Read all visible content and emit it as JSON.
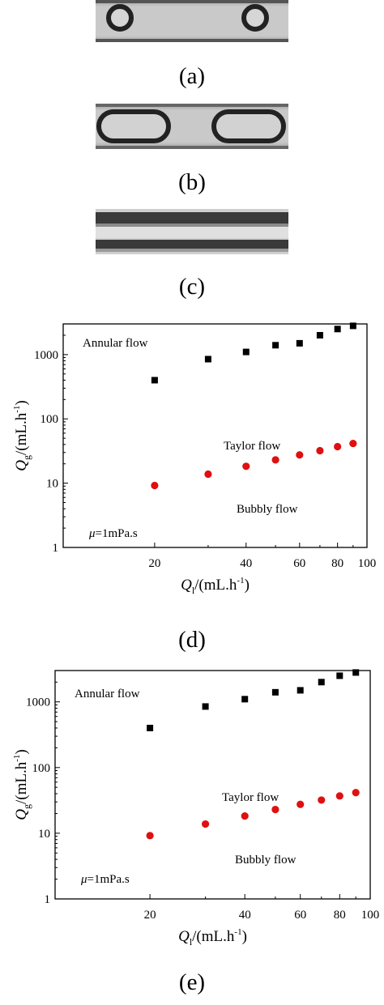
{
  "panels": {
    "a": "(a)",
    "b": "(b)",
    "c": "(c)",
    "d": "(d)",
    "e": "(e)"
  },
  "colors": {
    "taylor_annular_boundary": "#000000",
    "taylor_bubbly_boundary": "#e01010",
    "photo_background": "#c8c8c8",
    "photo_dark": "#2a2a2a"
  },
  "chart_data": [
    {
      "type": "scatter",
      "panel": "(d)",
      "xscale": "log",
      "yscale": "log",
      "xlim": [
        10,
        100
      ],
      "ylim": [
        1,
        3000
      ],
      "xticks": [
        20,
        40,
        60,
        80,
        100
      ],
      "yticks": [
        1,
        10,
        100,
        1000
      ],
      "xlabel_var": "Q",
      "xlabel_sub": "l",
      "xlabel_unit": "/(mL.h",
      "xlabel_sup": "-1",
      "xlabel_close": ")",
      "ylabel_var": "Q",
      "ylabel_sub": "g",
      "ylabel_unit": "/(mL.h",
      "ylabel_sup": "-1",
      "ylabel_close": ")",
      "region_labels": [
        "Annular flow",
        "Taylor flow",
        "Bubbly flow"
      ],
      "annotation_mu": "μ",
      "annotation_rest": "=1mPa.s",
      "series": [
        {
          "marker": "square",
          "color": "#000000",
          "x": [
            20,
            30,
            40,
            50,
            60,
            70,
            80,
            90
          ],
          "y": [
            400,
            850,
            1100,
            1400,
            1500,
            2000,
            2500,
            2800
          ]
        },
        {
          "marker": "circle",
          "color": "#e01010",
          "x": [
            20,
            30,
            40,
            50,
            60,
            70,
            80,
            90
          ],
          "y": [
            9.2,
            13.8,
            18.3,
            23,
            27.5,
            32,
            37,
            41.5
          ]
        }
      ]
    },
    {
      "type": "scatter",
      "panel": "(e)",
      "xscale": "log",
      "yscale": "log",
      "xlim": [
        10,
        100
      ],
      "ylim": [
        1,
        3000
      ],
      "xticks": [
        20,
        40,
        60,
        80,
        100
      ],
      "yticks": [
        1,
        10,
        100,
        1000
      ],
      "xlabel_var": "Q",
      "xlabel_sub": "l",
      "xlabel_unit": "/(mL.h",
      "xlabel_sup": "-1",
      "xlabel_close": ")",
      "ylabel_var": "Q",
      "ylabel_sub": "g",
      "ylabel_unit": "/(mL.h",
      "ylabel_sup": "-1",
      "ylabel_close": ")",
      "region_labels": [
        "Annular flow",
        "Taylor flow",
        "Bubbly flow"
      ],
      "annotation_mu": "μ",
      "annotation_rest": "=1mPa.s",
      "series": [
        {
          "marker": "square",
          "color": "#000000",
          "x": [
            20,
            30,
            40,
            50,
            60,
            70,
            80,
            90
          ],
          "y": [
            400,
            850,
            1100,
            1400,
            1500,
            2000,
            2500,
            2800
          ]
        },
        {
          "marker": "circle",
          "color": "#e01010",
          "x": [
            20,
            30,
            40,
            50,
            60,
            70,
            80,
            90
          ],
          "y": [
            9.2,
            13.8,
            18.3,
            23,
            27.5,
            32,
            37,
            41.5
          ]
        }
      ]
    }
  ]
}
